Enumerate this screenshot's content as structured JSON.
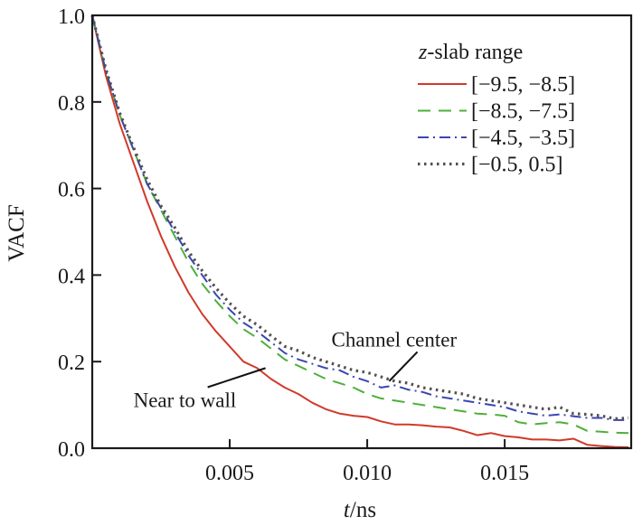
{
  "chart_data": {
    "type": "line",
    "title": "",
    "xlabel_italic": "t",
    "xlabel_rest": "/ns",
    "ylabel": "VACF",
    "xlim": [
      0,
      0.0196
    ],
    "ylim": [
      0,
      1.0
    ],
    "x_ticks": [
      0.005,
      0.01,
      0.015
    ],
    "x_tick_labels": [
      "0.005",
      "0.010",
      "0.015"
    ],
    "y_ticks": [
      0.0,
      0.2,
      0.4,
      0.6,
      0.8,
      1.0
    ],
    "y_tick_labels": [
      "0.0",
      "0.2",
      "0.4",
      "0.6",
      "0.8",
      "1.0"
    ],
    "grid": false,
    "legend": {
      "title_italic": "z",
      "title_rest": "-slab range",
      "placement": "top-right"
    },
    "x": [
      0,
      0.0005,
      0.001,
      0.0015,
      0.002,
      0.0025,
      0.003,
      0.0035,
      0.004,
      0.0045,
      0.005,
      0.0055,
      0.006,
      0.0065,
      0.007,
      0.0075,
      0.008,
      0.0085,
      0.009,
      0.0095,
      0.01,
      0.0105,
      0.011,
      0.0115,
      0.012,
      0.0125,
      0.013,
      0.0135,
      0.014,
      0.0145,
      0.015,
      0.0155,
      0.016,
      0.0165,
      0.017,
      0.0175,
      0.018,
      0.0185,
      0.019,
      0.0195
    ],
    "series": [
      {
        "name": "[−9.5, −8.5]",
        "color": "#d03a2a",
        "dash": "solid",
        "values": [
          1.0,
          0.86,
          0.75,
          0.66,
          0.57,
          0.49,
          0.42,
          0.36,
          0.31,
          0.27,
          0.235,
          0.2,
          0.185,
          0.16,
          0.14,
          0.125,
          0.105,
          0.09,
          0.08,
          0.075,
          0.072,
          0.062,
          0.055,
          0.055,
          0.053,
          0.05,
          0.048,
          0.04,
          0.03,
          0.035,
          0.028,
          0.025,
          0.02,
          0.02,
          0.018,
          0.022,
          0.008,
          0.005,
          0.003,
          0.002
        ]
      },
      {
        "name": "[−8.5, −7.5]",
        "color": "#4db03a",
        "dash": "dashed",
        "values": [
          1.0,
          0.87,
          0.77,
          0.69,
          0.61,
          0.55,
          0.49,
          0.43,
          0.38,
          0.34,
          0.305,
          0.275,
          0.255,
          0.23,
          0.205,
          0.19,
          0.175,
          0.16,
          0.15,
          0.14,
          0.125,
          0.115,
          0.11,
          0.105,
          0.1,
          0.095,
          0.09,
          0.085,
          0.08,
          0.078,
          0.075,
          0.06,
          0.055,
          0.058,
          0.06,
          0.055,
          0.04,
          0.038,
          0.036,
          0.035
        ]
      },
      {
        "name": "[−4.5, −3.5]",
        "color": "#3a46b0",
        "dash": "dashdot",
        "values": [
          1.0,
          0.87,
          0.77,
          0.69,
          0.61,
          0.555,
          0.5,
          0.445,
          0.4,
          0.355,
          0.32,
          0.29,
          0.27,
          0.245,
          0.22,
          0.205,
          0.195,
          0.185,
          0.18,
          0.165,
          0.155,
          0.14,
          0.145,
          0.135,
          0.13,
          0.12,
          0.115,
          0.11,
          0.105,
          0.1,
          0.095,
          0.085,
          0.08,
          0.075,
          0.078,
          0.074,
          0.07,
          0.07,
          0.065,
          0.065
        ]
      },
      {
        "name": "[−0.5, 0.5]",
        "color": "#555050",
        "dash": "dotted",
        "values": [
          1.0,
          0.875,
          0.775,
          0.695,
          0.62,
          0.56,
          0.51,
          0.455,
          0.41,
          0.37,
          0.335,
          0.305,
          0.285,
          0.26,
          0.235,
          0.225,
          0.21,
          0.2,
          0.19,
          0.18,
          0.175,
          0.165,
          0.155,
          0.15,
          0.14,
          0.135,
          0.13,
          0.125,
          0.115,
          0.11,
          0.105,
          0.1,
          0.095,
          0.09,
          0.095,
          0.08,
          0.078,
          0.075,
          0.068,
          0.07
        ]
      }
    ],
    "annotations": [
      {
        "text": "Near to wall",
        "text_x": 0.0015,
        "text_y": 0.095,
        "point_x": 0.0063,
        "point_y": 0.185
      },
      {
        "text": "Channel center",
        "text_x": 0.0087,
        "text_y": 0.235,
        "point_x": 0.0108,
        "point_y": 0.155
      }
    ]
  }
}
